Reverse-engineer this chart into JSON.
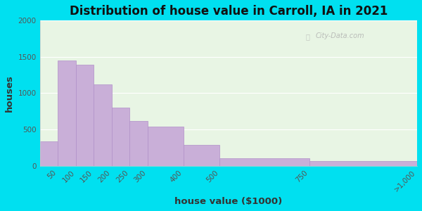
{
  "title": "Distribution of house value in Carroll, IA in 2021",
  "xlabel": "house value ($1000)",
  "ylabel": "houses",
  "bar_labels": [
    "50",
    "100",
    "150",
    "200",
    "250",
    "300",
    "400",
    "500",
    "750",
    ">1,000"
  ],
  "bar_left_edges": [
    0,
    50,
    100,
    150,
    200,
    250,
    300,
    400,
    500,
    750
  ],
  "bar_right_edges": [
    50,
    100,
    150,
    200,
    250,
    300,
    400,
    500,
    750,
    1050
  ],
  "bar_heights": [
    330,
    1450,
    1390,
    1120,
    800,
    620,
    540,
    290,
    105,
    60
  ],
  "bar_color": "#c9afd8",
  "bar_edgecolor": "#b090c8",
  "ylim": [
    0,
    2000
  ],
  "yticks": [
    0,
    500,
    1000,
    1500,
    2000
  ],
  "xlim": [
    0,
    1050
  ],
  "xtick_positions": [
    50,
    100,
    150,
    200,
    250,
    300,
    400,
    500,
    750,
    1050
  ],
  "bg_outer": "#00e0f0",
  "bg_plot": "#e8f5e4",
  "title_fontsize": 12,
  "axis_label_fontsize": 9.5,
  "tick_fontsize": 7.5,
  "watermark_text": "City-Data.com"
}
